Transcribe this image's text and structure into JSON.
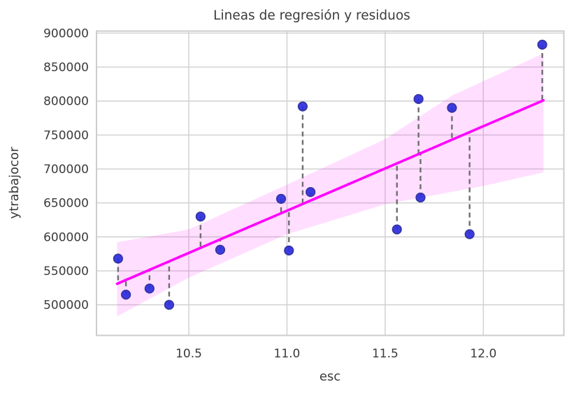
{
  "title": "Lineas de regresión y residuos",
  "chart_data": {
    "type": "scatter",
    "title": "Lineas de regresión y residuos",
    "xlabel": "esc",
    "ylabel": "ytrabajocor",
    "xlim": [
      10.03,
      12.41
    ],
    "ylim": [
      455000,
      903000
    ],
    "x_ticks": [
      10.5,
      11.0,
      11.5,
      12.0
    ],
    "x_tick_labels": [
      "10.5",
      "11.0",
      "11.5",
      "12.0"
    ],
    "y_ticks": [
      500000,
      550000,
      600000,
      650000,
      700000,
      750000,
      800000,
      850000,
      900000
    ],
    "y_tick_labels": [
      "500000",
      "550000",
      "600000",
      "650000",
      "700000",
      "750000",
      "800000",
      "850000",
      "900000"
    ],
    "grid": true,
    "legend": "none",
    "points": [
      [
        10.14,
        568000
      ],
      [
        10.18,
        515000
      ],
      [
        10.3,
        524000
      ],
      [
        10.4,
        500000
      ],
      [
        10.56,
        630000
      ],
      [
        10.66,
        581000
      ],
      [
        10.97,
        656000
      ],
      [
        11.01,
        580000
      ],
      [
        11.08,
        792000
      ],
      [
        11.12,
        666000
      ],
      [
        11.56,
        611000
      ],
      [
        11.67,
        803000
      ],
      [
        11.68,
        658000
      ],
      [
        11.84,
        790000
      ],
      [
        11.93,
        604000
      ],
      [
        12.3,
        883000
      ]
    ],
    "regression_line": {
      "x1": 10.135,
      "y1": 531000,
      "x2": 12.306,
      "y2": 801000
    },
    "confidence_band": {
      "top": [
        [
          10.135,
          592000
        ],
        [
          10.5,
          611000
        ],
        [
          11.0,
          677000
        ],
        [
          11.5,
          744000
        ],
        [
          11.84,
          808000
        ],
        [
          12.306,
          870000
        ]
      ],
      "bottom": [
        [
          10.135,
          483000
        ],
        [
          10.5,
          540000
        ],
        [
          11.0,
          604000
        ],
        [
          11.5,
          648000
        ],
        [
          12.0,
          675000
        ],
        [
          12.306,
          695000
        ]
      ]
    },
    "has_residual_lines": true,
    "colors": {
      "point_fill": "#2d2dde",
      "point_edge": "#34349d",
      "regression_line": "#ff00ff",
      "band_fill": "#ff00ff",
      "band_opacity": "0.13",
      "residual": "#6e6e6e",
      "grid": "#cfcfcf",
      "plot_border": "#cccccc",
      "axis_text": "#3b3b3b",
      "background": "#ffffff"
    }
  }
}
